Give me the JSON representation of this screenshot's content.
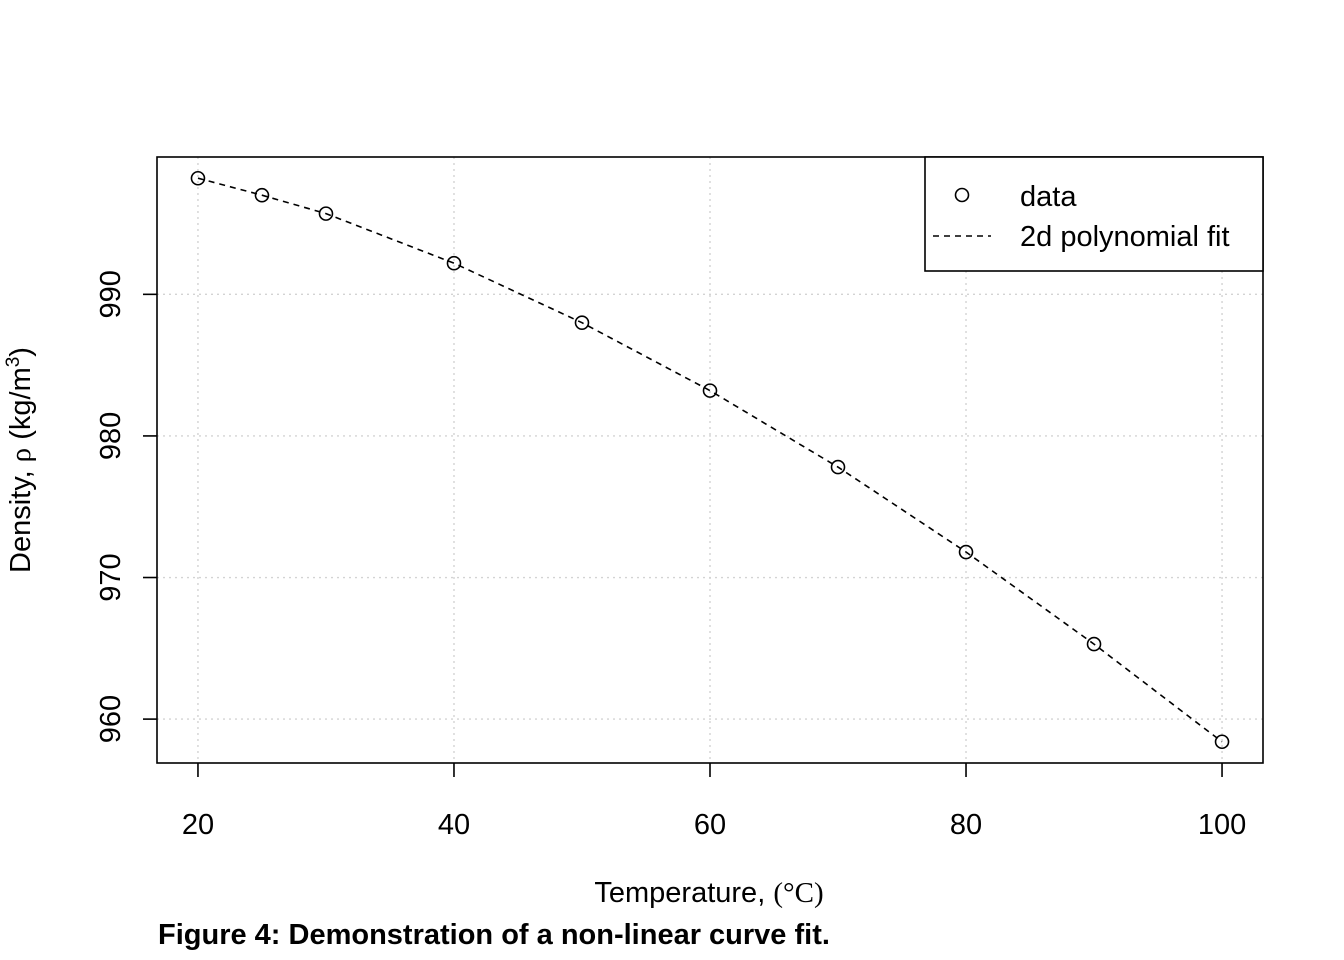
{
  "chart_data": {
    "type": "scatter",
    "xlabel": {
      "text": "Temperature, ",
      "degree_symbol": "°",
      "unit": "C",
      "open_paren": "(",
      "close_paren": ")"
    },
    "ylabel": {
      "text": "Density, ",
      "symbol": "ρ",
      "unit_open": "(kg/m",
      "unit_sup": "3",
      "unit_close": ")"
    },
    "xlim": [
      16.8,
      103.2
    ],
    "ylim": [
      956.9,
      999.7
    ],
    "x_ticks": [
      20,
      40,
      60,
      80,
      100
    ],
    "x_tick_labels": [
      "20",
      "40",
      "60",
      "80",
      "100"
    ],
    "y_ticks": [
      960,
      970,
      980,
      990
    ],
    "y_tick_labels": [
      "960",
      "970",
      "980",
      "990"
    ],
    "grid": true,
    "legend_position": "top-right",
    "series": [
      {
        "name": "data",
        "kind": "points",
        "marker": "open-circle",
        "x": [
          20,
          25,
          30,
          40,
          50,
          60,
          70,
          80,
          90,
          100
        ],
        "y": [
          998.2,
          997.0,
          995.7,
          992.2,
          988.0,
          983.2,
          977.8,
          971.8,
          965.3,
          958.4
        ]
      },
      {
        "name": "2d polynomial fit",
        "kind": "line",
        "line_style": "dashed",
        "x": [
          20,
          25,
          30,
          40,
          50,
          60,
          70,
          80,
          90,
          100
        ],
        "y": [
          998.2,
          997.0,
          995.7,
          992.2,
          988.0,
          983.2,
          977.8,
          971.8,
          965.3,
          958.4
        ]
      }
    ]
  },
  "caption": "Figure 4: Demonstration of a non-linear curve fit."
}
